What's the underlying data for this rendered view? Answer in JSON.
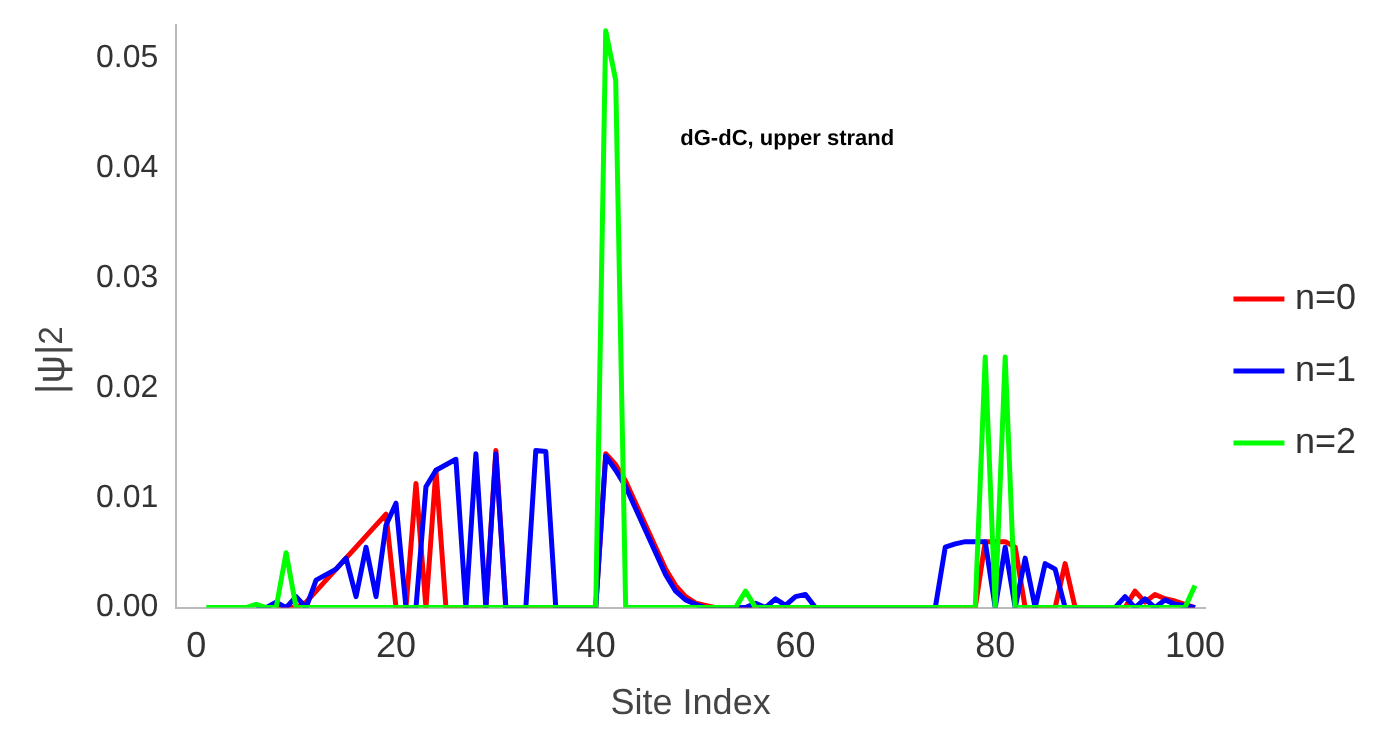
{
  "chart_data": {
    "type": "line",
    "xlabel": "Site Index",
    "ylabel": "|ψ|$^{2}$",
    "annotations": [
      "dG-dC, upper strand"
    ],
    "x": [
      1,
      2,
      3,
      4,
      5,
      6,
      7,
      8,
      9,
      10,
      11,
      12,
      13,
      14,
      15,
      16,
      17,
      18,
      19,
      20,
      21,
      22,
      23,
      24,
      25,
      26,
      27,
      28,
      29,
      30,
      31,
      32,
      33,
      34,
      35,
      36,
      37,
      38,
      39,
      40,
      41,
      42,
      43,
      44,
      45,
      46,
      47,
      48,
      49,
      50,
      51,
      52,
      53,
      54,
      55,
      56,
      57,
      58,
      59,
      60,
      61,
      62,
      63,
      64,
      65,
      66,
      67,
      68,
      69,
      70,
      71,
      72,
      73,
      74,
      75,
      76,
      77,
      78,
      79,
      80,
      81,
      82,
      83,
      84,
      85,
      86,
      87,
      88,
      89,
      90,
      91,
      92,
      93,
      94,
      95,
      96,
      97,
      98,
      99,
      100
    ],
    "series": [
      {
        "name": "n=0",
        "color": "#ff0000",
        "values": [
          null,
          null,
          null,
          null,
          null,
          null,
          null,
          0,
          0,
          0,
          0.0005,
          0.0015,
          0.0025,
          0.0035,
          0.0045,
          0.0055,
          0.0065,
          0.0075,
          0.0085,
          0,
          0,
          0.0113,
          0,
          0.0125,
          0,
          0,
          0,
          0,
          0,
          0.0143,
          0,
          0,
          0,
          0,
          0,
          0,
          0,
          0,
          0,
          0,
          0.014,
          0.013,
          0.0115,
          0.0095,
          0.0075,
          0.0055,
          0.0035,
          0.002,
          0.001,
          0.0004,
          0.0002,
          0,
          0,
          0,
          0,
          0,
          0,
          0,
          0,
          0,
          0,
          0,
          0,
          0,
          0,
          0,
          0,
          0,
          0,
          0,
          0,
          0,
          0,
          0,
          0,
          0,
          0,
          0,
          0.006,
          0.006,
          0.006,
          0.0055,
          0,
          0,
          0,
          0,
          0.004,
          0,
          0,
          0,
          0,
          0,
          0,
          0.0015,
          0.0005,
          0.0012,
          0.0008,
          0.0006,
          0.0003,
          0
        ]
      },
      {
        "name": "n=1",
        "color": "#0000ff",
        "values": [
          null,
          null,
          null,
          null,
          null,
          0,
          0,
          0.0005,
          0,
          0.001,
          0,
          0.0025,
          0.003,
          0.0035,
          0.0045,
          0.001,
          0.0055,
          0.001,
          0.0075,
          0.0095,
          0,
          0,
          0.011,
          0.0125,
          0.013,
          0.0135,
          0,
          0.014,
          0,
          0.014,
          0,
          0,
          0,
          0.0143,
          0.0142,
          0,
          0,
          0,
          0,
          0,
          0.0138,
          0.0125,
          0.011,
          0.009,
          0.007,
          0.005,
          0.003,
          0.0015,
          0.0007,
          0.0003,
          0,
          0,
          0,
          0,
          0,
          0.0004,
          0,
          0.0008,
          0.0002,
          0.001,
          0.0012,
          0,
          0,
          0,
          0,
          0,
          0,
          0,
          0,
          0,
          0,
          0,
          0,
          0,
          0.0055,
          0.0058,
          0.006,
          0.006,
          0.006,
          0,
          0.0055,
          0,
          0.0045,
          0,
          0.004,
          0.0035,
          0,
          0,
          0,
          0,
          0,
          0,
          0.001,
          0,
          0.0008,
          0,
          0.0007,
          0.0003,
          0.0002,
          0
        ]
      },
      {
        "name": "n=2",
        "color": "#00ff00",
        "values": [
          0,
          0,
          0,
          0,
          0,
          0.0003,
          0,
          0,
          0.005,
          0,
          0,
          0,
          0,
          0,
          0,
          0,
          0,
          0,
          0,
          0,
          0,
          0,
          0,
          0,
          0,
          0,
          0,
          0,
          0,
          0,
          0,
          0,
          0,
          0,
          0,
          0,
          0,
          0,
          0,
          0,
          0.0525,
          0.048,
          0,
          0,
          0,
          0,
          0,
          0,
          0,
          0,
          0,
          0,
          0,
          0,
          0.0015,
          0,
          0,
          0,
          0,
          0,
          0,
          0,
          0,
          0,
          0,
          0,
          0,
          0,
          0,
          0,
          0,
          0,
          0,
          0,
          0,
          0,
          0,
          0,
          0.0228,
          0,
          0.0228,
          0,
          0,
          0,
          0,
          0,
          0,
          0,
          0,
          0,
          0,
          0,
          0,
          0,
          0,
          0,
          0,
          0,
          0,
          0.002
        ]
      }
    ],
    "xlim": [
      -2,
      101
    ],
    "ylim": [
      0,
      0.053
    ],
    "xticks": [
      0,
      20,
      40,
      60,
      80,
      100
    ],
    "yticks": [
      {
        "value": 0,
        "label": "0.00"
      },
      {
        "value": 0.01,
        "label": "0.01"
      },
      {
        "value": 0.02,
        "label": "0.02"
      },
      {
        "value": 0.03,
        "label": "0.03"
      },
      {
        "value": 0.04,
        "label": "0.04"
      },
      {
        "value": 0.05,
        "label": "0.05"
      }
    ],
    "legend": "right",
    "marker": "none",
    "line_style": "solid",
    "grid": false
  }
}
